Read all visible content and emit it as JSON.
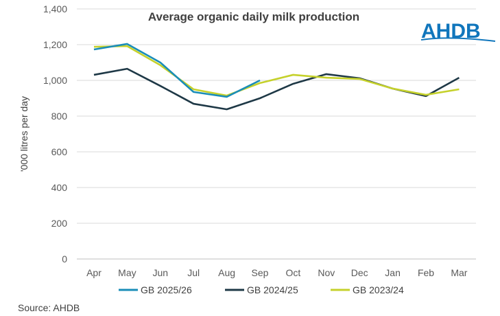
{
  "chart_data": {
    "type": "line",
    "title": "Average organic daily milk production",
    "ylabel": "'000 litres per day",
    "xlabel": "",
    "categories": [
      "Apr",
      "May",
      "Jun",
      "Jul",
      "Aug",
      "Sep",
      "Oct",
      "Nov",
      "Dec",
      "Jan",
      "Feb",
      "Mar"
    ],
    "ylim": [
      0,
      1400
    ],
    "yticks": [
      "0",
      "200",
      "400",
      "600",
      "800",
      "1,000",
      "1,200",
      "1,400"
    ],
    "grid": true,
    "legend": "bottom",
    "series": [
      {
        "name": "GB 2025/26",
        "color": "#1a8db8",
        "values": [
          1173,
          1204,
          1100,
          935,
          908,
          1000,
          null,
          null,
          null,
          null,
          null,
          null
        ]
      },
      {
        "name": "GB 2024/25",
        "color": "#1e3846",
        "values": [
          1031,
          1065,
          969,
          869,
          838,
          900,
          981,
          1035,
          1012,
          954,
          912,
          1015
        ]
      },
      {
        "name": "GB 2023/24",
        "color": "#c5d12b",
        "values": [
          1188,
          1192,
          1085,
          950,
          915,
          985,
          1031,
          1015,
          1008,
          954,
          919,
          950
        ]
      }
    ]
  },
  "source": "Source: AHDB",
  "logo": {
    "text": "AHDB",
    "color": "#1076bc"
  }
}
